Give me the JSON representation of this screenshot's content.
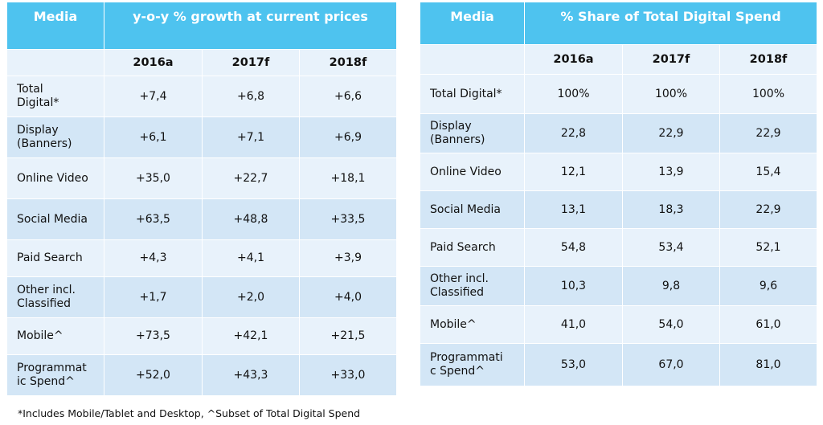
{
  "chart_data": [
    {
      "type": "table",
      "title": "y-o-y % growth at current prices",
      "columns": [
        "Media",
        "2016a",
        "2017f",
        "2018f"
      ],
      "header_label": "Media",
      "years": [
        "2016a",
        "2017f",
        "2018f"
      ],
      "rows": [
        {
          "label": "Total Digital*",
          "label_lines": [
            "Total",
            "Digital*"
          ],
          "values": [
            "+7,4",
            "+6,8",
            "+6,6"
          ]
        },
        {
          "label": "Display (Banners)",
          "label_lines": [
            "Display",
            "(Banners)"
          ],
          "values": [
            "+6,1",
            "+7,1",
            "+6,9"
          ]
        },
        {
          "label": "Online Video",
          "label_lines": [
            "Online Video"
          ],
          "values": [
            "+35,0",
            "+22,7",
            "+18,1"
          ]
        },
        {
          "label": "Social Media",
          "label_lines": [
            "Social Media"
          ],
          "values": [
            "+63,5",
            "+48,8",
            "+33,5"
          ]
        },
        {
          "label": "Paid Search",
          "label_lines": [
            "Paid Search"
          ],
          "values": [
            "+4,3",
            "+4,1",
            "+3,9"
          ]
        },
        {
          "label": "Other incl. Classified",
          "label_lines": [
            "Other incl.",
            "Classified"
          ],
          "values": [
            "+1,7",
            "+2,0",
            "+4,0"
          ]
        },
        {
          "label": "Mobile^",
          "label_lines": [
            "Mobile^"
          ],
          "values": [
            "+73,5",
            "+42,1",
            "+21,5"
          ]
        },
        {
          "label": "Programmatic Spend^",
          "label_lines": [
            "Programmat",
            "ic Spend^"
          ],
          "values": [
            "+52,0",
            "+43,3",
            "+33,0"
          ]
        }
      ]
    },
    {
      "type": "table",
      "title": "% Share of Total Digital Spend",
      "columns": [
        "Media",
        "2016a",
        "2017f",
        "2018f"
      ],
      "header_label": "Media",
      "years": [
        "2016a",
        "2017f",
        "2018f"
      ],
      "rows": [
        {
          "label": "Total Digital*",
          "label_lines": [
            "Total Digital*"
          ],
          "values": [
            "100%",
            "100%",
            "100%"
          ]
        },
        {
          "label": "Display (Banners)",
          "label_lines": [
            "Display",
            "(Banners)"
          ],
          "values": [
            "22,8",
            "22,9",
            "22,9"
          ]
        },
        {
          "label": "Online Video",
          "label_lines": [
            "Online Video"
          ],
          "values": [
            "12,1",
            "13,9",
            "15,4"
          ]
        },
        {
          "label": "Social Media",
          "label_lines": [
            "Social Media"
          ],
          "values": [
            "13,1",
            "18,3",
            "22,9"
          ]
        },
        {
          "label": "Paid Search",
          "label_lines": [
            "Paid Search"
          ],
          "values": [
            "54,8",
            "53,4",
            "52,1"
          ]
        },
        {
          "label": "Other incl. Classified",
          "label_lines": [
            "Other incl.",
            "Classified"
          ],
          "values": [
            "10,3",
            "9,8",
            "9,6"
          ]
        },
        {
          "label": "Mobile^",
          "label_lines": [
            "Mobile^"
          ],
          "values": [
            "41,0",
            "54,0",
            "61,0"
          ]
        },
        {
          "label": "Programmatic Spend^",
          "label_lines": [
            "Programmati",
            "c Spend^"
          ],
          "values": [
            "53,0",
            "67,0",
            "81,0"
          ]
        }
      ]
    }
  ],
  "footnote": "*Includes Mobile/Tablet and Desktop, ^Subset of Total Digital Spend",
  "colors": {
    "header": "#4ec3ef",
    "row_light": "#e8f2fb",
    "row_dark": "#d3e6f6",
    "header_text": "#ffffff"
  }
}
